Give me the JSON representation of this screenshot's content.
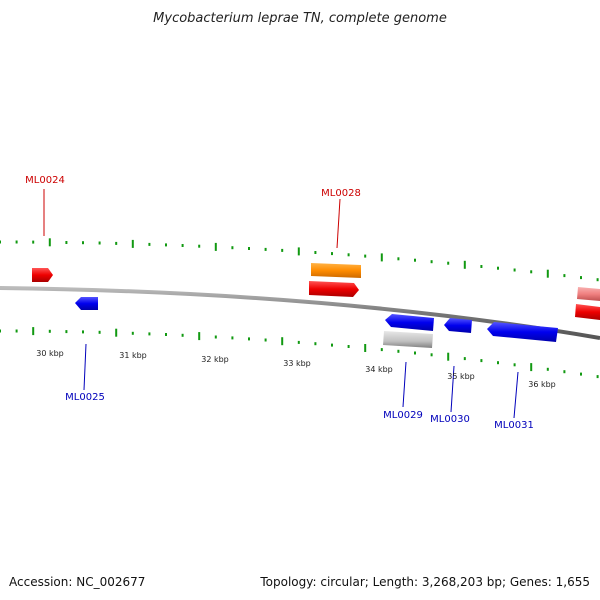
{
  "title": "Mycobacterium leprae TN, complete genome",
  "footer": {
    "accession": "Accession: NC_002677",
    "summary": "Topology: circular; Length: 3,268,203 bp; Genes: 1,655"
  },
  "colors": {
    "forward_gene": "#ee0000",
    "reverse_gene": "#0000ee",
    "highlight_gene": "#ff8c00",
    "pseudo_gene": "#c0c0c0",
    "faded_gene": "#f08080",
    "ticks": "#119911",
    "backbone": "#888888",
    "label_forward": "#cc0000",
    "label_reverse": "#0000bb"
  },
  "scale": {
    "tick_labels": [
      {
        "text": "30 kbp"
      },
      {
        "text": "31 kbp"
      },
      {
        "text": "32 kbp"
      },
      {
        "text": "33 kbp"
      },
      {
        "text": "34 kbp"
      },
      {
        "text": "35 kbp"
      },
      {
        "text": "36 kbp"
      }
    ]
  },
  "gene_labels": [
    {
      "text": "ML0024",
      "strand": "forward"
    },
    {
      "text": "ML0028",
      "strand": "forward"
    },
    {
      "text": "ML0025",
      "strand": "reverse"
    },
    {
      "text": "ML0029",
      "strand": "reverse"
    },
    {
      "text": "ML0030",
      "strand": "reverse"
    },
    {
      "text": "ML0031",
      "strand": "reverse"
    }
  ]
}
